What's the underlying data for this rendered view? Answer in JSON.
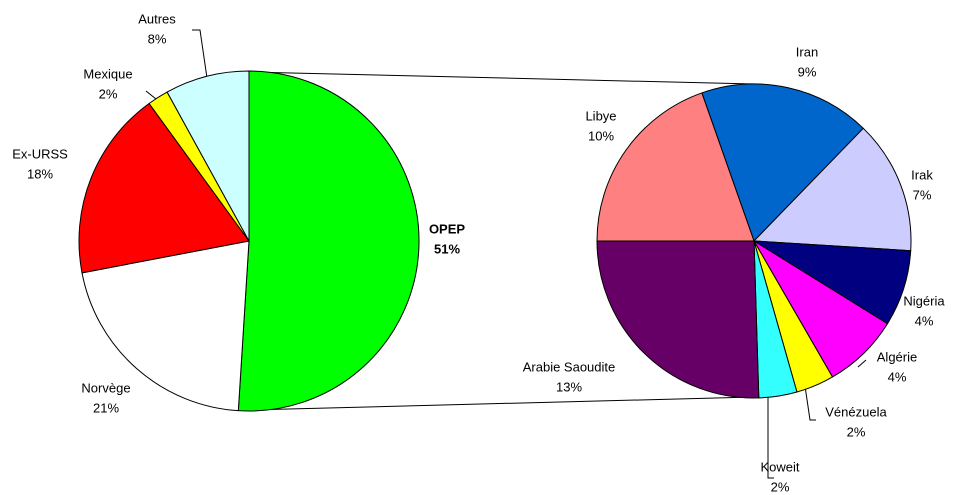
{
  "chart_data": [
    {
      "type": "pie",
      "categories": [
        "OPEP",
        "Norvège",
        "Ex-URSS",
        "Mexique",
        "Autres"
      ],
      "values": [
        51,
        21,
        18,
        2,
        8
      ],
      "value_labels": [
        "51%",
        "21%",
        "18%",
        "2%",
        "8%"
      ],
      "colors": [
        "#00ff00",
        "#ffffff",
        "#ff0000",
        "#ffff00",
        "#ccffff"
      ]
    },
    {
      "type": "pie",
      "categories": [
        "Iran",
        "Irak",
        "Nigéria",
        "Algérie",
        "Vénézuela",
        "Koweit",
        "Arabie Saoudite",
        "Libye"
      ],
      "values": [
        9,
        7,
        4,
        4,
        2,
        2,
        13,
        10
      ],
      "value_labels": [
        "9%",
        "7%",
        "4%",
        "4%",
        "2%",
        "2%",
        "13%",
        "10%"
      ],
      "colors": [
        "#0066cc",
        "#ccccff",
        "#000080",
        "#ff00ff",
        "#ffff00",
        "#33ffff",
        "#660066",
        "#ff8080"
      ]
    }
  ]
}
